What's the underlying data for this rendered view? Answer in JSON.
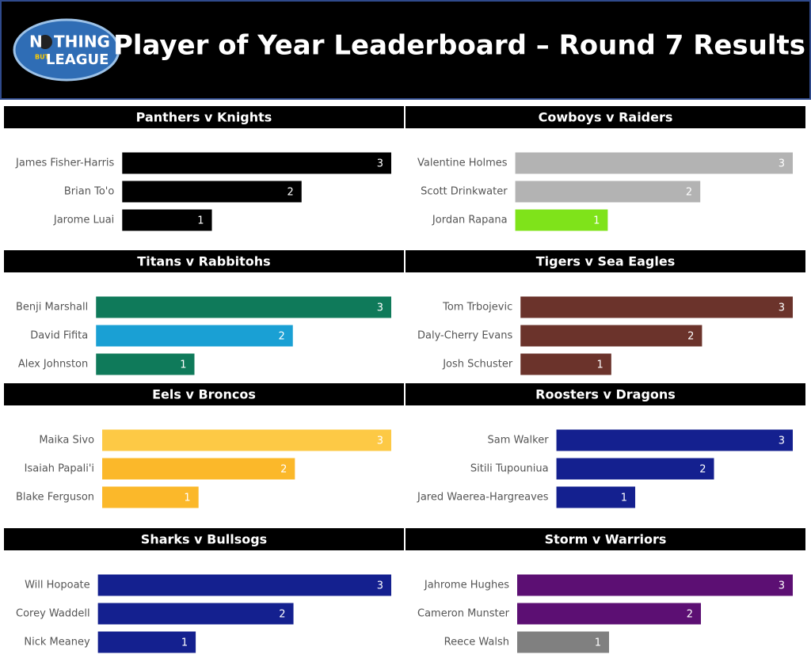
{
  "header": {
    "title": "Player of Year Leaderboard – Round 7 Results",
    "logo": [
      "N",
      "THING",
      "BUT",
      "LEAGUE"
    ]
  },
  "chart_data": [
    {
      "type": "bar",
      "title": "Panthers v Knights",
      "categories": [
        "James Fisher-Harris",
        "Brian To'o",
        "Jarome Luai"
      ],
      "values": [
        3,
        2,
        1
      ],
      "colors": [
        "#000000",
        "#000000",
        "#000000"
      ],
      "xlim": [
        0,
        3
      ]
    },
    {
      "type": "bar",
      "title": "Cowboys v Raiders",
      "categories": [
        "Valentine Holmes",
        "Scott Drinkwater",
        "Jordan Rapana"
      ],
      "values": [
        3,
        2,
        1
      ],
      "colors": [
        "#b3b3b3",
        "#b3b3b3",
        "#7fe31a"
      ],
      "xlim": [
        0,
        3
      ]
    },
    {
      "type": "bar",
      "title": "Titans v Rabbitohs",
      "categories": [
        "Benji Marshall",
        "David Fifita",
        "Alex Johnston"
      ],
      "values": [
        3,
        2,
        1
      ],
      "colors": [
        "#0f7a5a",
        "#1aa0d4",
        "#0f7a5a"
      ],
      "xlim": [
        0,
        3
      ]
    },
    {
      "type": "bar",
      "title": "Tigers v Sea Eagles",
      "categories": [
        "Tom Trbojevic",
        "Daly-Cherry Evans",
        "Josh Schuster"
      ],
      "values": [
        3,
        2,
        1
      ],
      "colors": [
        "#6b332b",
        "#6b332b",
        "#6b332b"
      ],
      "xlim": [
        0,
        3
      ]
    },
    {
      "type": "bar",
      "title": "Eels v Broncos",
      "categories": [
        "Maika Sivo",
        "Isaiah Papali'i",
        "Blake Ferguson"
      ],
      "values": [
        3,
        2,
        1
      ],
      "colors": [
        "#fdc945",
        "#fbb82a",
        "#fbb82a"
      ],
      "xlim": [
        0,
        3
      ]
    },
    {
      "type": "bar",
      "title": "Roosters v Dragons",
      "categories": [
        "Sam Walker",
        "Sitili Tupouniua",
        "Jared Waerea-Hargreaves"
      ],
      "values": [
        3,
        2,
        1
      ],
      "colors": [
        "#14208f",
        "#14208f",
        "#14208f"
      ],
      "xlim": [
        0,
        3
      ]
    },
    {
      "type": "bar",
      "title": "Sharks v Bullsogs",
      "categories": [
        "Will Hopoate",
        "Corey Waddell",
        "Nick Meaney"
      ],
      "values": [
        3,
        2,
        1
      ],
      "colors": [
        "#14208f",
        "#14208f",
        "#14208f"
      ],
      "xlim": [
        0,
        3
      ]
    },
    {
      "type": "bar",
      "title": "Storm v Warriors",
      "categories": [
        "Jahrome Hughes",
        "Cameron Munster",
        "Reece Walsh"
      ],
      "values": [
        3,
        2,
        1
      ],
      "colors": [
        "#5c0f73",
        "#5c0f73",
        "#808080"
      ],
      "xlim": [
        0,
        3
      ]
    }
  ]
}
